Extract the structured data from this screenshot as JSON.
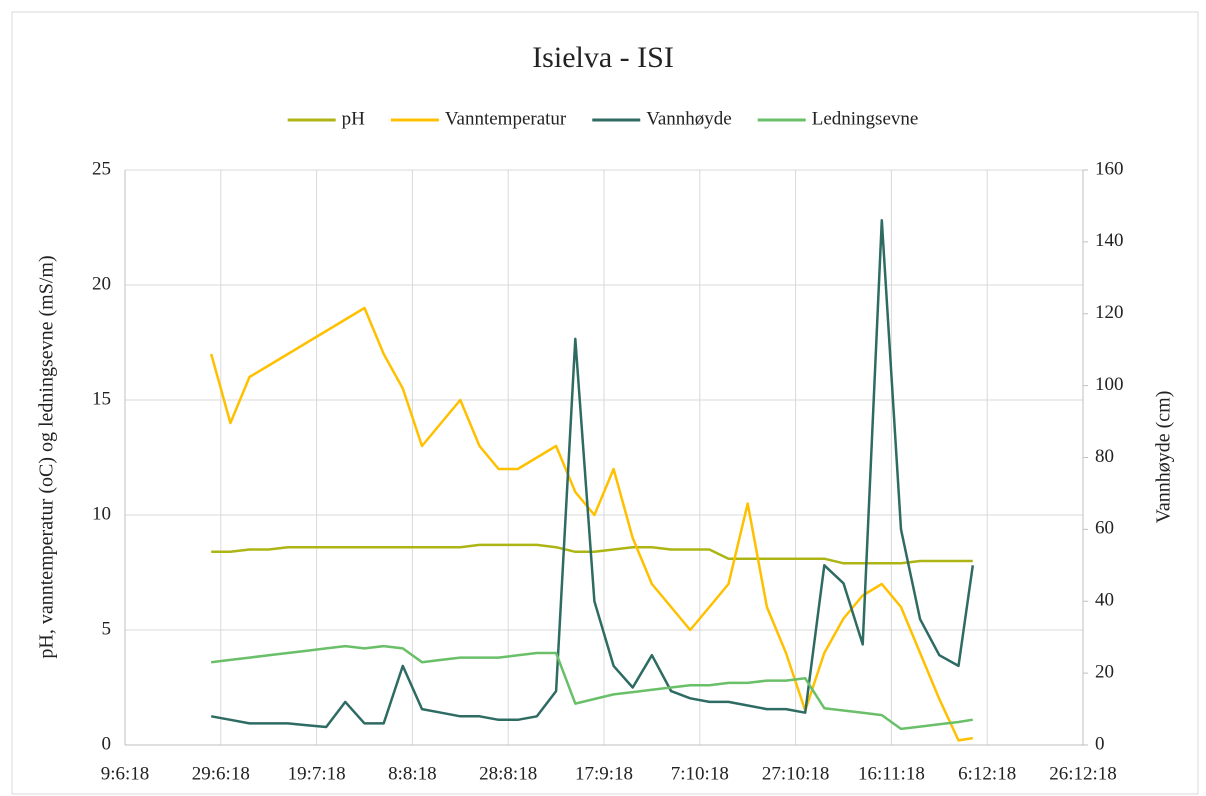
{
  "chart_data": {
    "type": "line",
    "title": "Isielva - ISI",
    "y_label": "pH, vanntemperatur (oC) og ledningsevne (mS/m)",
    "y2_label": "Vannhøyde (cm)",
    "grid": true,
    "legend": "top",
    "x": [
      "2018-06-27",
      "2018-07-01",
      "2018-07-05",
      "2018-07-09",
      "2018-07-13",
      "2018-07-17",
      "2018-07-21",
      "2018-07-25",
      "2018-07-29",
      "2018-08-02",
      "2018-08-06",
      "2018-08-10",
      "2018-08-14",
      "2018-08-18",
      "2018-08-22",
      "2018-08-26",
      "2018-08-30",
      "2018-09-03",
      "2018-09-07",
      "2018-09-11",
      "2018-09-15",
      "2018-09-19",
      "2018-09-23",
      "2018-09-27",
      "2018-10-01",
      "2018-10-05",
      "2018-10-09",
      "2018-10-13",
      "2018-10-17",
      "2018-10-21",
      "2018-10-25",
      "2018-10-29",
      "2018-11-02",
      "2018-11-06",
      "2018-11-10",
      "2018-11-14",
      "2018-11-18",
      "2018-11-22",
      "2018-11-26",
      "2018-11-30",
      "2018-12-03"
    ],
    "xlim": [
      "2018-06-09",
      "2018-12-26"
    ],
    "xticks": [
      {
        "value": "2018-06-09",
        "label": "9:6:18"
      },
      {
        "value": "2018-06-29",
        "label": "29:6:18"
      },
      {
        "value": "2018-07-19",
        "label": "19:7:18"
      },
      {
        "value": "2018-08-08",
        "label": "8:8:18"
      },
      {
        "value": "2018-08-28",
        "label": "28:8:18"
      },
      {
        "value": "2018-09-17",
        "label": "17:9:18"
      },
      {
        "value": "2018-10-07",
        "label": "7:10:18"
      },
      {
        "value": "2018-10-27",
        "label": "27:10:18"
      },
      {
        "value": "2018-11-16",
        "label": "16:11:18"
      },
      {
        "value": "2018-12-06",
        "label": "6:12:18"
      },
      {
        "value": "2018-12-26",
        "label": "26:12:18"
      }
    ],
    "ylim": [
      0,
      25
    ],
    "yticks": [
      0,
      5,
      10,
      15,
      20,
      25
    ],
    "y2lim": [
      0,
      160
    ],
    "y2ticks": [
      0,
      20,
      40,
      60,
      80,
      100,
      120,
      140,
      160
    ],
    "series": [
      {
        "name": "pH",
        "color": "#adb514",
        "values": [
          8.4,
          8.4,
          8.5,
          8.5,
          8.6,
          8.6,
          8.6,
          8.6,
          8.6,
          8.6,
          8.6,
          8.6,
          8.6,
          8.6,
          8.7,
          8.7,
          8.7,
          8.7,
          8.6,
          8.4,
          8.4,
          8.5,
          8.6,
          8.6,
          8.5,
          8.5,
          8.5,
          8.1,
          8.1,
          8.1,
          8.1,
          8.1,
          8.1,
          7.9,
          7.9,
          7.9,
          7.9,
          8.0,
          8.0,
          8.0,
          8.0
        ]
      },
      {
        "name": "Vanntemperatur",
        "color": "#ffc000",
        "values": [
          17,
          14,
          16,
          16.5,
          17,
          17.5,
          18,
          18.5,
          19,
          17,
          15.5,
          13,
          14,
          15,
          13,
          12,
          12,
          12.5,
          13,
          11,
          10,
          12,
          9,
          7,
          6,
          5,
          6,
          7,
          10.5,
          6,
          4,
          1.5,
          4,
          5.5,
          6.5,
          7,
          6,
          4,
          2,
          0.2,
          0.3
        ]
      },
      {
        "name": "Vannhøyde",
        "color": "#2e6b63",
        "axis": "y2",
        "values": [
          8,
          7,
          6,
          6,
          6,
          5.5,
          5,
          12,
          6,
          6,
          22,
          10,
          9,
          8,
          8,
          7,
          7,
          8,
          15,
          113,
          40,
          22,
          16,
          25,
          15,
          13,
          12,
          12,
          11,
          10,
          10,
          9,
          50,
          45,
          28,
          146,
          60,
          35,
          25,
          22,
          50
        ]
      },
      {
        "name": "Ledningsevne",
        "color": "#6abf69",
        "values": [
          3.6,
          3.7,
          3.8,
          3.9,
          4.0,
          4.1,
          4.2,
          4.3,
          4.2,
          4.3,
          4.2,
          3.6,
          3.7,
          3.8,
          3.8,
          3.8,
          3.9,
          4.0,
          4.0,
          1.8,
          2.0,
          2.2,
          2.3,
          2.4,
          2.5,
          2.6,
          2.6,
          2.7,
          2.7,
          2.8,
          2.8,
          2.9,
          1.6,
          1.5,
          1.4,
          1.3,
          0.7,
          0.8,
          0.9,
          1.0,
          1.1
        ]
      }
    ]
  }
}
